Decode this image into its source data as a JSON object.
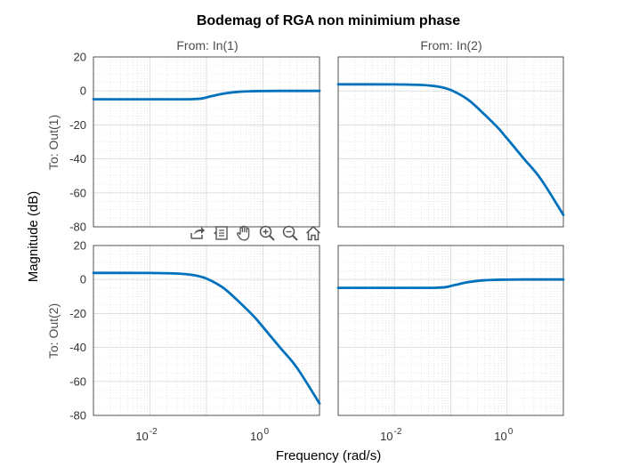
{
  "chart_data": {
    "type": "line",
    "title": "Bodemag of RGA non minimium phase",
    "xlabel": "Frequency  (rad/s)",
    "ylabel": "Magnitude (dB)",
    "input_labels": [
      "From: In(1)",
      "From: In(2)"
    ],
    "output_labels": [
      "To: Out(1)",
      "To: Out(2)"
    ],
    "x_scale": "log",
    "xlim": [
      0.001,
      10
    ],
    "ylim": [
      -80,
      20
    ],
    "yticks": [
      -80,
      -60,
      -40,
      -20,
      0,
      20
    ],
    "xticks": [
      {
        "value": 0.01,
        "base": "10",
        "exp": "-2"
      },
      {
        "value": 1,
        "base": "10",
        "exp": "0"
      }
    ],
    "grid": true,
    "line_color": "#0072bd",
    "panels": [
      {
        "row": 1,
        "col": 1,
        "input": "In(1)",
        "output": "Out(1)",
        "x": [
          0.001,
          0.01,
          0.03,
          0.05,
          0.08,
          0.12,
          0.2,
          0.35,
          0.6,
          1,
          2,
          5,
          10
        ],
        "y": [
          -4.9,
          -4.9,
          -4.9,
          -4.9,
          -4.5,
          -3.2,
          -1.6,
          -0.6,
          -0.2,
          -0.1,
          0,
          0,
          0
        ]
      },
      {
        "row": 1,
        "col": 2,
        "input": "In(2)",
        "output": "Out(1)",
        "x": [
          0.001,
          0.01,
          0.03,
          0.06,
          0.1,
          0.2,
          0.4,
          0.7,
          1,
          2,
          4,
          10
        ],
        "y": [
          3.9,
          3.8,
          3.5,
          2.5,
          0.5,
          -5,
          -14,
          -22,
          -28,
          -40,
          -52,
          -73
        ]
      },
      {
        "row": 2,
        "col": 1,
        "input": "In(1)",
        "output": "Out(2)",
        "x": [
          0.001,
          0.01,
          0.03,
          0.06,
          0.1,
          0.2,
          0.4,
          0.7,
          1,
          2,
          4,
          10
        ],
        "y": [
          3.9,
          3.8,
          3.5,
          2.5,
          0.5,
          -5,
          -14,
          -22,
          -28,
          -40,
          -52,
          -73
        ]
      },
      {
        "row": 2,
        "col": 2,
        "input": "In(2)",
        "output": "Out(2)",
        "x": [
          0.001,
          0.01,
          0.03,
          0.05,
          0.08,
          0.12,
          0.2,
          0.35,
          0.6,
          1,
          2,
          5,
          10
        ],
        "y": [
          -4.9,
          -4.9,
          -4.9,
          -4.9,
          -4.5,
          -3.2,
          -1.6,
          -0.6,
          -0.2,
          -0.1,
          0,
          0,
          0
        ]
      }
    ]
  },
  "toolbar": {
    "icons": [
      "export-icon",
      "data-tips-icon",
      "pan-icon",
      "zoom-in-icon",
      "zoom-out-icon",
      "home-icon"
    ]
  }
}
